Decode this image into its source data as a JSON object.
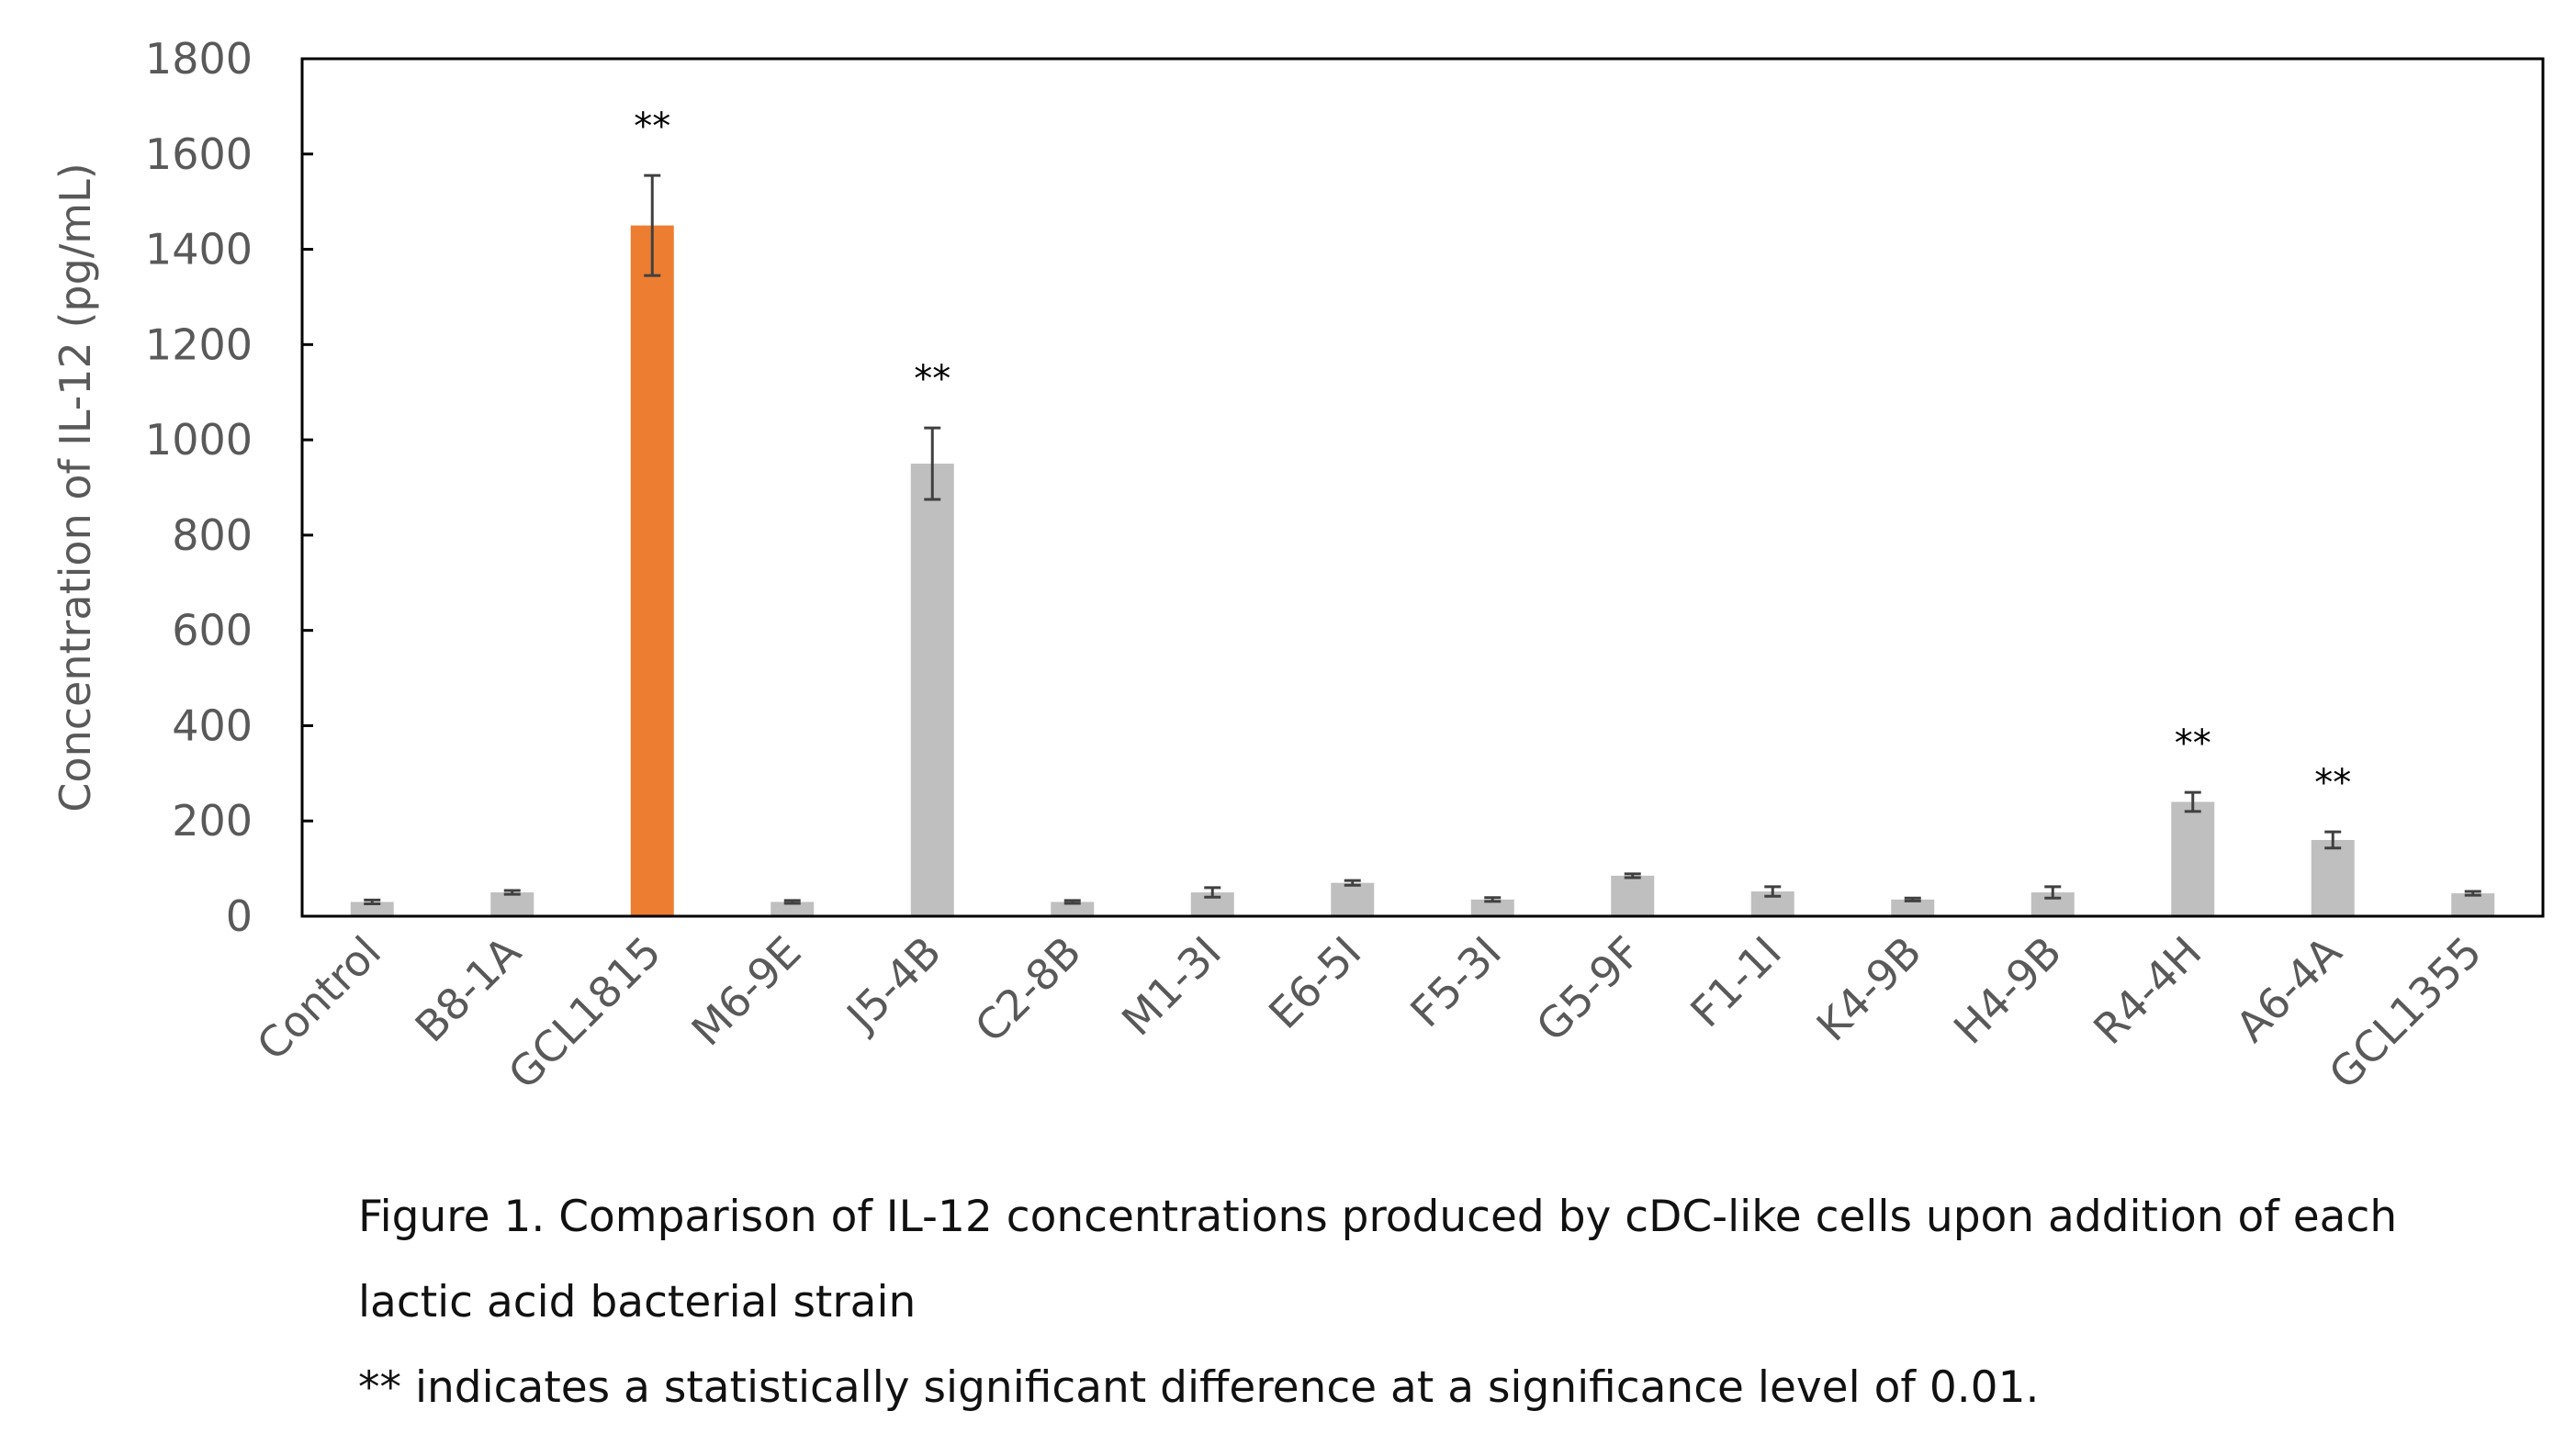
{
  "chart_data": {
    "type": "bar",
    "title": "",
    "xlabel": "",
    "ylabel": "Concentration of IL-12 (pg/mL)",
    "ylim": [
      0,
      1800
    ],
    "yticks": [
      "0",
      "200",
      "400",
      "600",
      "800",
      "1000",
      "1200",
      "1400",
      "1600",
      "1800"
    ],
    "ytick_values": [
      0,
      200,
      400,
      600,
      800,
      1000,
      1200,
      1400,
      1600,
      1800
    ],
    "grid": false,
    "categories": [
      "Control",
      "B8-1A",
      "GCL1815",
      "M6-9E",
      "J5-4B",
      "C2-8B",
      "M1-3I",
      "E6-5I",
      "F5-3I",
      "G5-9F",
      "F1-1I",
      "K4-9B",
      "H4-9B",
      "R4-4H",
      "A6-4A",
      "GCL1355"
    ],
    "values": [
      30,
      50,
      1450,
      30,
      950,
      30,
      50,
      70,
      35,
      85,
      52,
      35,
      50,
      240,
      160,
      48
    ],
    "errors": [
      4,
      4,
      105,
      3,
      75,
      3,
      10,
      5,
      4,
      4,
      10,
      3,
      12,
      20,
      17,
      4
    ],
    "significance": [
      "",
      "",
      "**",
      "",
      "**",
      "",
      "",
      "",
      "",
      "",
      "",
      "",
      "",
      "**",
      "**",
      ""
    ],
    "colors": {
      "default": "#bfbfbf",
      "highlight": "#ed7d31",
      "highlight_category": "GCL1815",
      "error_bar": "#404040",
      "text": "#595959"
    }
  },
  "caption": {
    "line1": "Figure 1. Comparison of IL-12 concentrations produced by cDC-like cells upon addition of each",
    "line2": "lactic acid bacterial strain",
    "line3": "** indicates a statistically significant difference at a significance level of 0.01."
  }
}
